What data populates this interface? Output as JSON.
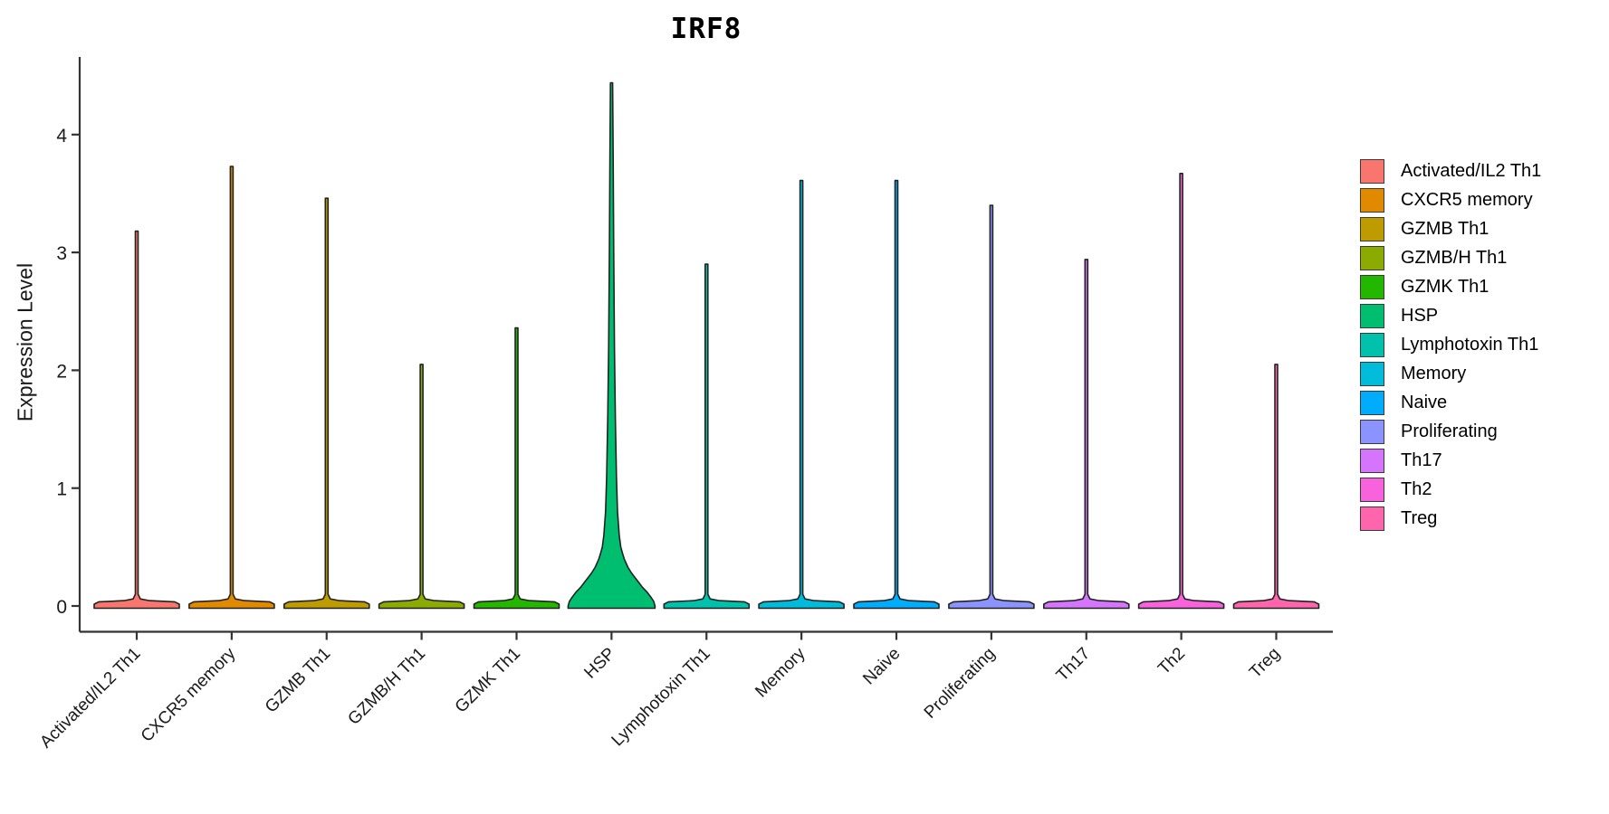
{
  "title": "IRF8",
  "chart_data": {
    "type": "violin",
    "title": "IRF8",
    "ylabel": "Expression Level",
    "xlabel": "",
    "ylim": [
      0,
      4.44
    ],
    "yticks": [
      0,
      1,
      2,
      3,
      4
    ],
    "grid": false,
    "legend_position": "right",
    "categories": [
      "Activated/IL2 Th1",
      "CXCR5 memory",
      "GZMB Th1",
      "GZMB/H Th1",
      "GZMK Th1",
      "HSP",
      "Lymphotoxin Th1",
      "Memory",
      "Naive",
      "Proliferating",
      "Th17",
      "Th2",
      "Treg"
    ],
    "series": [
      {
        "name": "Activated/IL2 Th1",
        "color": "#F8766D",
        "max_expression": 3.18,
        "shape": "spike"
      },
      {
        "name": "CXCR5 memory",
        "color": "#E18A00",
        "max_expression": 3.73,
        "shape": "spike"
      },
      {
        "name": "GZMB Th1",
        "color": "#BE9C00",
        "max_expression": 3.46,
        "shape": "spike"
      },
      {
        "name": "GZMB/H Th1",
        "color": "#8CAB00",
        "max_expression": 2.05,
        "shape": "spike"
      },
      {
        "name": "GZMK Th1",
        "color": "#24B700",
        "max_expression": 2.36,
        "shape": "spike"
      },
      {
        "name": "HSP",
        "color": "#00BE70",
        "max_expression": 4.44,
        "shape": "bulk"
      },
      {
        "name": "Lymphotoxin Th1",
        "color": "#00C1AB",
        "max_expression": 2.9,
        "shape": "spike"
      },
      {
        "name": "Memory",
        "color": "#00BBDA",
        "max_expression": 3.61,
        "shape": "spike"
      },
      {
        "name": "Naive",
        "color": "#00ACFC",
        "max_expression": 3.61,
        "shape": "spike"
      },
      {
        "name": "Proliferating",
        "color": "#8B93FF",
        "max_expression": 3.4,
        "shape": "spike"
      },
      {
        "name": "Th17",
        "color": "#D575FE",
        "max_expression": 2.94,
        "shape": "spike"
      },
      {
        "name": "Th2",
        "color": "#F962DD",
        "max_expression": 3.67,
        "shape": "spike"
      },
      {
        "name": "Treg",
        "color": "#FF65AC",
        "max_expression": 2.05,
        "shape": "spike"
      }
    ],
    "bulk_profile": [
      [
        4.44,
        1.2
      ],
      [
        3.8,
        1.8
      ],
      [
        3.0,
        2.4
      ],
      [
        2.2,
        3.2
      ],
      [
        1.6,
        4.2
      ],
      [
        1.1,
        5.4
      ],
      [
        0.8,
        6.6
      ],
      [
        0.6,
        8.5
      ],
      [
        0.5,
        10.2
      ],
      [
        0.45,
        12
      ],
      [
        0.4,
        14
      ],
      [
        0.33,
        18
      ],
      [
        0.28,
        22
      ],
      [
        0.24,
        26
      ],
      [
        0.2,
        30
      ],
      [
        0.16,
        34
      ],
      [
        0.12,
        39
      ],
      [
        0.08,
        43
      ],
      [
        0.04,
        46.5
      ],
      [
        0.0,
        48
      ]
    ],
    "spike_profile": [
      [
        1.0,
        1.5
      ],
      [
        0.1,
        1.5
      ],
      [
        0.06,
        4
      ],
      [
        0.045,
        14
      ],
      [
        0.035,
        42
      ],
      [
        0.015,
        47
      ],
      [
        0.0,
        47
      ]
    ]
  },
  "legend": {
    "items": [
      {
        "label": "Activated/IL2 Th1",
        "color": "#F8766D"
      },
      {
        "label": "CXCR5 memory",
        "color": "#E18A00"
      },
      {
        "label": "GZMB Th1",
        "color": "#BE9C00"
      },
      {
        "label": "GZMB/H Th1",
        "color": "#8CAB00"
      },
      {
        "label": "GZMK Th1",
        "color": "#24B700"
      },
      {
        "label": "HSP",
        "color": "#00BE70"
      },
      {
        "label": "Lymphotoxin Th1",
        "color": "#00C1AB"
      },
      {
        "label": "Memory",
        "color": "#00BBDA"
      },
      {
        "label": "Naive",
        "color": "#00ACFC"
      },
      {
        "label": "Proliferating",
        "color": "#8B93FF"
      },
      {
        "label": "Th17",
        "color": "#D575FE"
      },
      {
        "label": "Th2",
        "color": "#F962DD"
      },
      {
        "label": "Treg",
        "color": "#FF65AC"
      }
    ]
  },
  "style": {
    "axis_color": "#333333",
    "outline_color": "#222222",
    "text_color": "#1a1a1a"
  }
}
